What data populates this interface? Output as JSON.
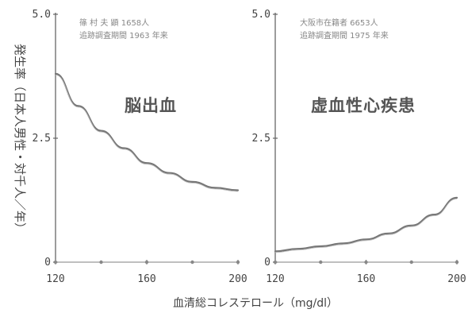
{
  "figure": {
    "ylabel": "発生率（日本人男性・対千人／年）",
    "xlabel": "血清総コレステロール（mg/dl）"
  },
  "chart_data": [
    {
      "type": "line",
      "title": "脳出血",
      "notes": [
        "篠 村 夫 顕 1658人",
        "追跡調査期間 1963 年来"
      ],
      "x": [
        120,
        130,
        140,
        150,
        160,
        170,
        180,
        190,
        200
      ],
      "series": [
        {
          "values": [
            3.8,
            3.15,
            2.65,
            2.3,
            2.0,
            1.8,
            1.62,
            1.5,
            1.45
          ]
        }
      ],
      "baseline": [
        0,
        0,
        0,
        0,
        0,
        0,
        0,
        0,
        0
      ],
      "xlim": [
        120,
        200
      ],
      "ylim": [
        0,
        5.0
      ],
      "xticks": [
        "120",
        "160",
        "200"
      ],
      "yticks": [
        "0",
        "2.5",
        "5.0"
      ]
    },
    {
      "type": "line",
      "title": "虚血性心疾患",
      "notes": [
        "大阪市在籍者 6653人",
        "追跡調査期間 1975 年来"
      ],
      "x": [
        120,
        130,
        140,
        150,
        160,
        170,
        180,
        190,
        200
      ],
      "series": [
        {
          "values": [
            0.22,
            0.27,
            0.32,
            0.38,
            0.46,
            0.58,
            0.74,
            0.96,
            1.3
          ]
        }
      ],
      "baseline": [
        0,
        0,
        0,
        0,
        0,
        0,
        0,
        0,
        0
      ],
      "xlim": [
        120,
        200
      ],
      "ylim": [
        0,
        5.0
      ],
      "xticks": [
        "120",
        "160",
        "200"
      ],
      "yticks": [
        "0",
        "2.5",
        "5.0"
      ]
    }
  ]
}
